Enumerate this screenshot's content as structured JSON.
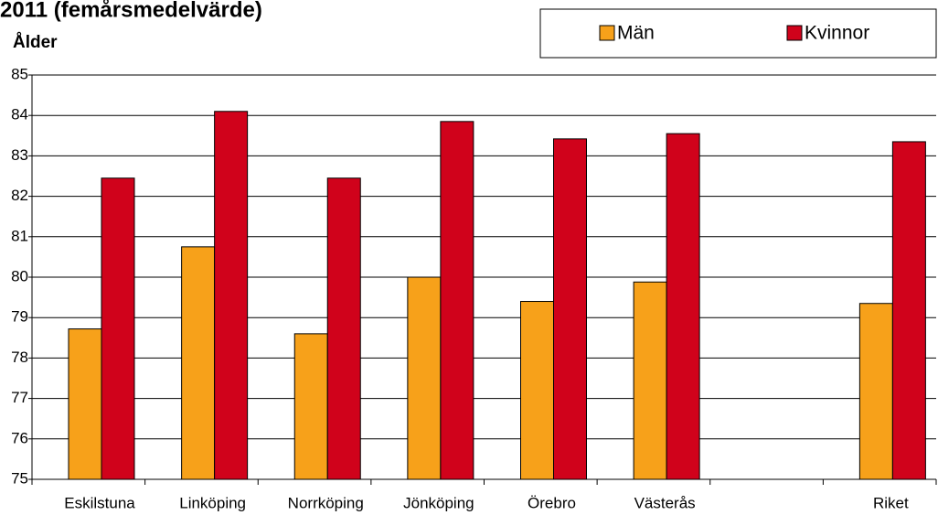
{
  "chart_data": {
    "type": "bar",
    "title": "2011 (femårsmedelvärde)",
    "y_label": "Ålder",
    "categories": [
      "Eskilstuna",
      "Linköping",
      "Norrköping",
      "Jönköping",
      "Örebro",
      "Västerås",
      null,
      "Riket"
    ],
    "series": [
      {
        "name": "Män",
        "color": "#f7a11a",
        "values": [
          78.72,
          80.75,
          78.6,
          80.0,
          79.4,
          79.88,
          null,
          79.35
        ]
      },
      {
        "name": "Kvinnor",
        "color": "#d0021b",
        "values": [
          82.45,
          84.1,
          82.45,
          83.85,
          83.42,
          83.55,
          null,
          83.35
        ]
      }
    ],
    "ylim": [
      75,
      85
    ],
    "yticks": [
      75,
      76,
      77,
      78,
      79,
      80,
      81,
      82,
      83,
      84,
      85
    ],
    "grid": true,
    "legend": "top-right"
  }
}
